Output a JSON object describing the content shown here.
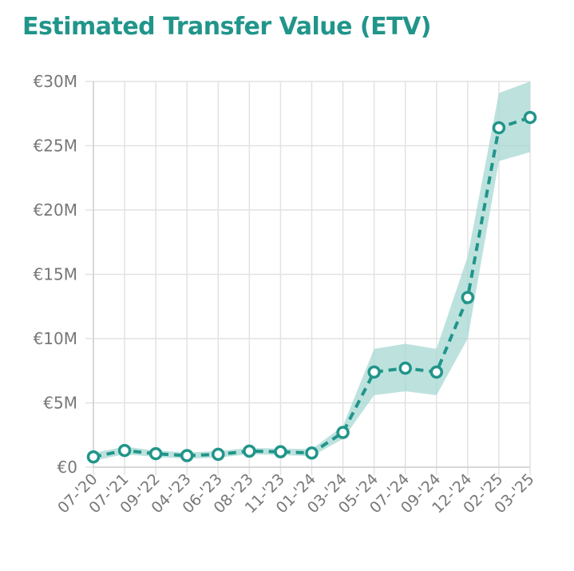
{
  "header": {
    "title": "Estimated Transfer Value (ETV)"
  },
  "colors": {
    "accent": "#21958a",
    "band": "#a7d8d3",
    "grid": "#e2e2e2",
    "tick_text": "#777777",
    "point_fill": "#ffffff"
  },
  "chart_data": {
    "type": "line",
    "title": "Estimated Transfer Value (ETV)",
    "xlabel": "",
    "ylabel": "",
    "categories": [
      "07-'20",
      "07-'21",
      "09-'22",
      "04-'23",
      "06-'23",
      "08-'23",
      "11-'23",
      "01-'24",
      "03-'24",
      "05-'24",
      "07-'24",
      "09-'24",
      "12-'24",
      "02-'25",
      "03-'25"
    ],
    "values": [
      0.8,
      1.3,
      1.05,
      0.9,
      1.0,
      1.25,
      1.2,
      1.1,
      2.7,
      7.4,
      7.7,
      7.4,
      13.2,
      26.4,
      27.2
    ],
    "band_upper": [
      1.1,
      1.6,
      1.3,
      1.15,
      1.25,
      1.5,
      1.45,
      1.4,
      3.2,
      9.2,
      9.6,
      9.2,
      16.4,
      29.1,
      30.0
    ],
    "band_lower": [
      0.5,
      1.0,
      0.8,
      0.65,
      0.75,
      1.0,
      0.95,
      0.85,
      2.2,
      5.6,
      5.9,
      5.6,
      10.0,
      23.8,
      24.5
    ],
    "unit": "€M",
    "ylim": [
      0,
      30
    ],
    "yticks": [
      {
        "value": 0,
        "label": "€0"
      },
      {
        "value": 5,
        "label": "€5M"
      },
      {
        "value": 10,
        "label": "€10M"
      },
      {
        "value": 15,
        "label": "€15M"
      },
      {
        "value": 20,
        "label": "€20M"
      },
      {
        "value": 25,
        "label": "€25M"
      },
      {
        "value": 30,
        "label": "€30M"
      }
    ],
    "grid": true,
    "line_style": "dashed",
    "legend": "none"
  }
}
